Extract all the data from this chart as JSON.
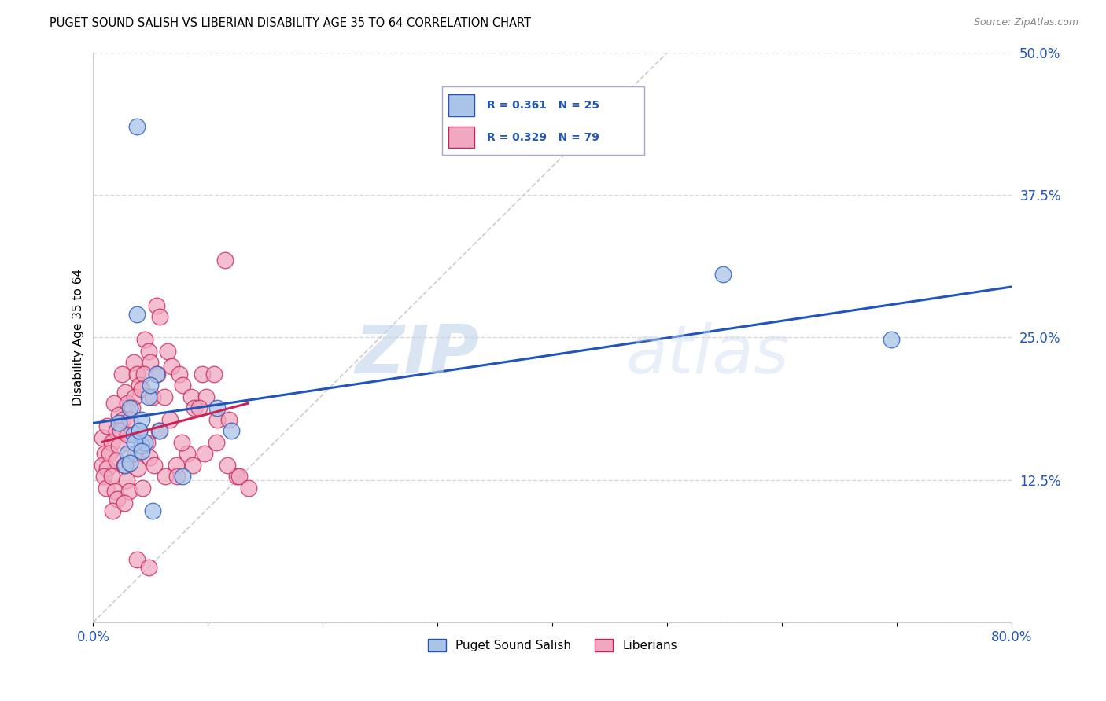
{
  "title": "PUGET SOUND SALISH VS LIBERIAN DISABILITY AGE 35 TO 64 CORRELATION CHART",
  "source": "Source: ZipAtlas.com",
  "ylabel": "Disability Age 35 to 64",
  "xlim": [
    0.0,
    0.8
  ],
  "ylim": [
    0.0,
    0.5
  ],
  "xtick_positions": [
    0.0,
    0.1,
    0.2,
    0.3,
    0.4,
    0.5,
    0.6,
    0.7,
    0.8
  ],
  "xtick_labels_shown": {
    "0.0": "0.0%",
    "0.80": "80.0%"
  },
  "yticks": [
    0.0,
    0.125,
    0.25,
    0.375,
    0.5
  ],
  "ytick_labels": [
    "",
    "12.5%",
    "25.0%",
    "37.5%",
    "50.0%"
  ],
  "legend_labels": [
    "Puget Sound Salish",
    "Liberians"
  ],
  "blue_R": "0.361",
  "blue_N": "25",
  "pink_R": "0.329",
  "pink_N": "79",
  "blue_color": "#aac4e8",
  "pink_color": "#f0a8c0",
  "blue_line_color": "#2255bb",
  "pink_line_color": "#cc2255",
  "watermark_zip": "ZIP",
  "watermark_atlas": "atlas",
  "blue_scatter_x": [
    0.022,
    0.035,
    0.042,
    0.038,
    0.048,
    0.032,
    0.055,
    0.04,
    0.045,
    0.03,
    0.042,
    0.05,
    0.028,
    0.058,
    0.036,
    0.12,
    0.078,
    0.052,
    0.038,
    0.548,
    0.695,
    0.042,
    0.032,
    0.108,
    0.04
  ],
  "blue_scatter_y": [
    0.175,
    0.165,
    0.155,
    0.27,
    0.198,
    0.188,
    0.218,
    0.168,
    0.158,
    0.148,
    0.178,
    0.208,
    0.138,
    0.168,
    0.158,
    0.168,
    0.128,
    0.098,
    0.435,
    0.305,
    0.248,
    0.15,
    0.14,
    0.188,
    0.168
  ],
  "pink_scatter_x": [
    0.008,
    0.01,
    0.012,
    0.008,
    0.018,
    0.022,
    0.02,
    0.016,
    0.014,
    0.012,
    0.025,
    0.028,
    0.03,
    0.026,
    0.024,
    0.022,
    0.02,
    0.035,
    0.038,
    0.04,
    0.036,
    0.034,
    0.032,
    0.03,
    0.045,
    0.048,
    0.05,
    0.044,
    0.042,
    0.055,
    0.058,
    0.056,
    0.052,
    0.065,
    0.068,
    0.062,
    0.075,
    0.078,
    0.072,
    0.085,
    0.088,
    0.082,
    0.095,
    0.098,
    0.092,
    0.105,
    0.108,
    0.115,
    0.118,
    0.125,
    0.009,
    0.011,
    0.016,
    0.019,
    0.021,
    0.017,
    0.027,
    0.029,
    0.031,
    0.027,
    0.037,
    0.039,
    0.047,
    0.049,
    0.043,
    0.057,
    0.053,
    0.067,
    0.063,
    0.077,
    0.073,
    0.087,
    0.097,
    0.107,
    0.117,
    0.127,
    0.135,
    0.038,
    0.048
  ],
  "pink_scatter_y": [
    0.162,
    0.148,
    0.172,
    0.138,
    0.192,
    0.182,
    0.168,
    0.158,
    0.148,
    0.135,
    0.218,
    0.202,
    0.192,
    0.178,
    0.168,
    0.155,
    0.142,
    0.228,
    0.218,
    0.208,
    0.198,
    0.188,
    0.178,
    0.165,
    0.248,
    0.238,
    0.228,
    0.218,
    0.205,
    0.278,
    0.268,
    0.218,
    0.198,
    0.238,
    0.225,
    0.198,
    0.218,
    0.208,
    0.138,
    0.198,
    0.188,
    0.148,
    0.218,
    0.198,
    0.188,
    0.218,
    0.178,
    0.318,
    0.178,
    0.128,
    0.128,
    0.118,
    0.128,
    0.115,
    0.108,
    0.098,
    0.138,
    0.125,
    0.115,
    0.105,
    0.148,
    0.135,
    0.158,
    0.145,
    0.118,
    0.168,
    0.138,
    0.178,
    0.128,
    0.158,
    0.128,
    0.138,
    0.148,
    0.158,
    0.138,
    0.128,
    0.118,
    0.055,
    0.048
  ]
}
